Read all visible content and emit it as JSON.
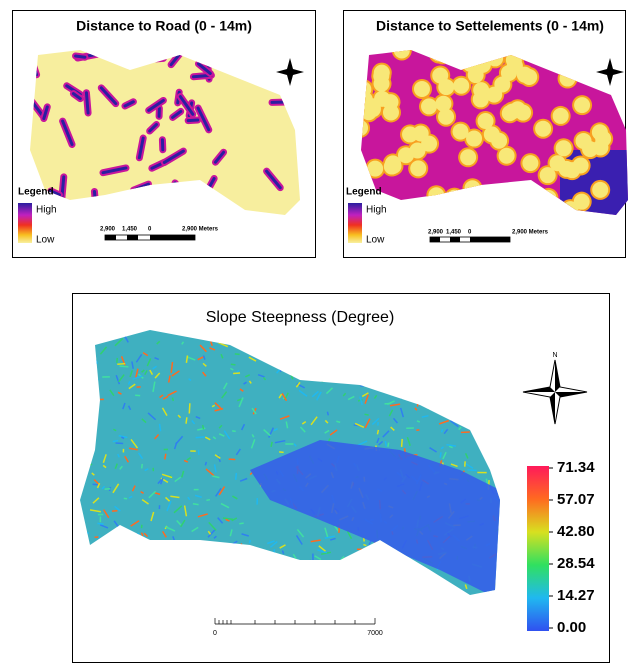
{
  "panels": [
    {
      "title": "Distance to Road (0 - 14m)",
      "legend": {
        "title": "Legend",
        "high": "High",
        "low": "Low"
      },
      "scale_bar": [
        "2,900",
        "1,450",
        "0",
        "2,900 Meters"
      ]
    },
    {
      "title": "Distance to Settelements (0 - 14m)",
      "legend": {
        "title": "Legend",
        "high": "High",
        "low": "Low"
      },
      "scale_bar": [
        "2,900",
        "1,450",
        "0",
        "2,900 Meters"
      ]
    },
    {
      "title": "Slope Steepness (Degree)",
      "north": "N",
      "colorbar": [
        "71.34",
        "57.07",
        "42.80",
        "28.54",
        "14.27",
        "0.00"
      ],
      "scale_bar": [
        "0",
        "7000"
      ]
    }
  ]
}
